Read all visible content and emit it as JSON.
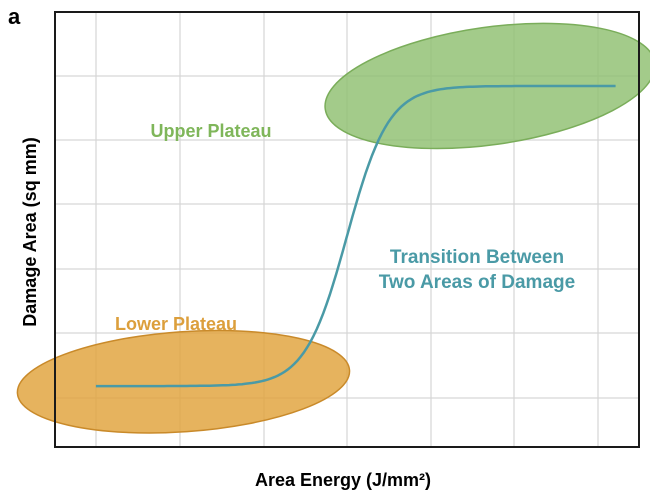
{
  "panel_label": "a",
  "colors": {
    "curve": "#4a9aa6",
    "upper_plateau": "#8fc070",
    "upper_plateau_edge": "#7aad5a",
    "lower_plateau": "#e0a23a",
    "lower_plateau_edge": "#c98a2a",
    "grid": "#d6d6d6",
    "axis": "#1a1a1a",
    "upper_text": "#7fb65a",
    "lower_text": "#dc9f3c",
    "transition_text": "#4a9aa6"
  },
  "chart_data": {
    "type": "line",
    "title": "",
    "xlabel": "Area Energy (J/mm²)",
    "ylabel": "Damage Area (sq mm)",
    "grid": true,
    "legend": "none",
    "ticks_labeled": false,
    "annotations": {
      "upper": "Upper Plateau",
      "lower": "Lower Plateau",
      "transition_line1": "Transition Between",
      "transition_line2": "Two Areas of Damage"
    },
    "series": [
      {
        "curve": "sigmoid",
        "lower_level": 0.14,
        "upper_level": 0.83,
        "x_start": 0.07,
        "x_end": 0.96,
        "transition_center": 0.5,
        "transition_steepness": 28
      }
    ],
    "regions": [
      {
        "label": "Upper Plateau",
        "cx": 0.745,
        "cy": 0.83,
        "rx": 0.285,
        "ry": 0.135,
        "rotate": -8
      },
      {
        "label": "Lower Plateau",
        "cx": 0.22,
        "cy": 0.15,
        "rx": 0.285,
        "ry": 0.115,
        "rotate": -4
      }
    ]
  }
}
